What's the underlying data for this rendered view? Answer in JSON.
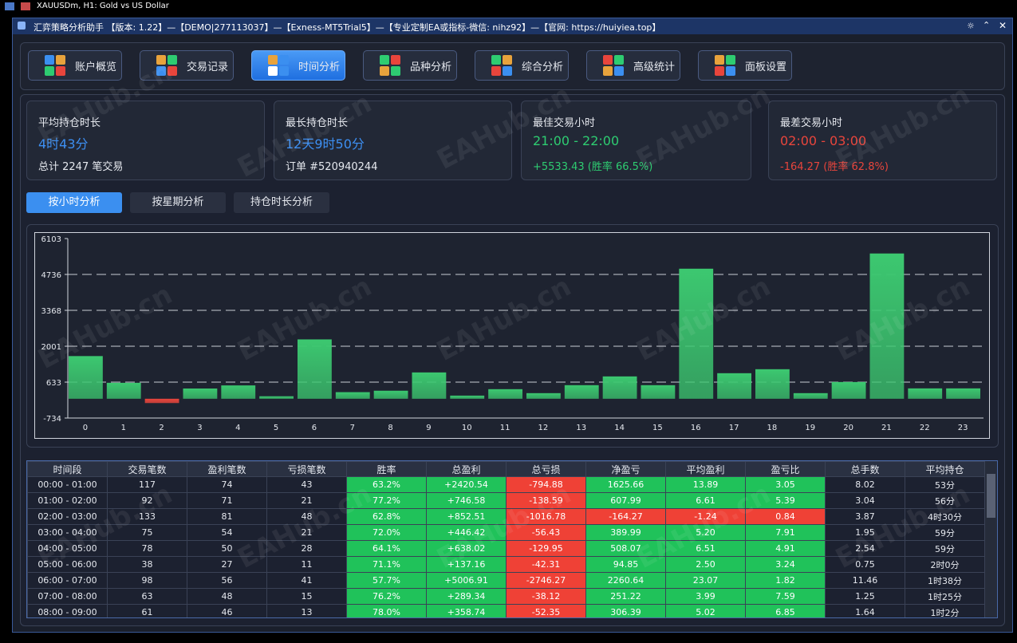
{
  "window_title": "XAUUSDm, H1:  Gold vs US Dollar",
  "app_title": "汇弈策略分析助手 【版本: 1.22】—【DEMO|277113037】—【Exness-MT5Trial5】—【专业定制EA或指标-微信: nihz92】—【官网: https://huiyiea.top】",
  "watermark": "EAHub.cn",
  "tabs": [
    {
      "label": "账户概览",
      "active": false
    },
    {
      "label": "交易记录",
      "active": false
    },
    {
      "label": "时间分析",
      "active": true
    },
    {
      "label": "品种分析",
      "active": false
    },
    {
      "label": "综合分析",
      "active": false
    },
    {
      "label": "高级统计",
      "active": false
    },
    {
      "label": "面板设置",
      "active": false
    }
  ],
  "cards": [
    {
      "label": "平均持仓时长",
      "value": "4时43分",
      "sub": "总计 2247 笔交易",
      "color": "#3d8ff2",
      "sub_color": "#e6e9ef"
    },
    {
      "label": "最长持仓时长",
      "value": "12天9时50分",
      "sub": "订单 #520940244",
      "color": "#3d8ff2",
      "sub_color": "#e6e9ef"
    },
    {
      "label": "最佳交易小时",
      "value": "21:00 - 22:00",
      "sub": "+5533.43 (胜率 66.5%)",
      "color": "#2ecc71",
      "sub_color": "#2ecc71"
    },
    {
      "label": "最差交易小时",
      "value": "02:00 - 03:00",
      "sub": "-164.27 (胜率 62.8%)",
      "color": "#e8453c",
      "sub_color": "#e8453c"
    }
  ],
  "subtabs": [
    {
      "label": "按小时分析",
      "active": true
    },
    {
      "label": "按星期分析",
      "active": false
    },
    {
      "label": "持仓时长分析",
      "active": false
    }
  ],
  "chart_data": {
    "type": "bar",
    "categories": [
      "0",
      "1",
      "2",
      "3",
      "4",
      "5",
      "6",
      "7",
      "8",
      "9",
      "10",
      "11",
      "12",
      "13",
      "14",
      "15",
      "16",
      "17",
      "18",
      "19",
      "20",
      "21",
      "22",
      "23"
    ],
    "values": [
      1625.66,
      607.99,
      -164.27,
      389.99,
      508.07,
      94.85,
      2260.64,
      251.22,
      306.39,
      1003,
      120,
      365,
      213,
      517,
      851,
      517,
      4954,
      973,
      1125,
      213,
      638,
      5533.43,
      395,
      395
    ],
    "ylim": [
      -734,
      6103
    ],
    "yticks": [
      -734,
      633,
      2001,
      3368,
      4736,
      6103
    ],
    "grid": true,
    "colors": {
      "positive": "#3cc870",
      "negative": "#e8453c"
    }
  },
  "table": {
    "headers": [
      "时间段",
      "交易笔数",
      "盈利笔数",
      "亏损笔数",
      "胜率",
      "总盈利",
      "总亏损",
      "净盈亏",
      "平均盈利",
      "盈亏比",
      "总手数",
      "平均持仓"
    ],
    "rows": [
      [
        "00:00 - 01:00",
        "117",
        "74",
        "43",
        "63.2%",
        "+2420.54",
        "-794.88",
        "1625.66",
        "13.89",
        "3.05",
        "8.02",
        "53分"
      ],
      [
        "01:00 - 02:00",
        "92",
        "71",
        "21",
        "77.2%",
        "+746.58",
        "-138.59",
        "607.99",
        "6.61",
        "5.39",
        "3.04",
        "56分"
      ],
      [
        "02:00 - 03:00",
        "133",
        "81",
        "48",
        "62.8%",
        "+852.51",
        "-1016.78",
        "-164.27",
        "-1.24",
        "0.84",
        "3.87",
        "4时30分"
      ],
      [
        "03:00 - 04:00",
        "75",
        "54",
        "21",
        "72.0%",
        "+446.42",
        "-56.43",
        "389.99",
        "5.20",
        "7.91",
        "1.95",
        "59分"
      ],
      [
        "04:00 - 05:00",
        "78",
        "50",
        "28",
        "64.1%",
        "+638.02",
        "-129.95",
        "508.07",
        "6.51",
        "4.91",
        "2.54",
        "59分"
      ],
      [
        "05:00 - 06:00",
        "38",
        "27",
        "11",
        "71.1%",
        "+137.16",
        "-42.31",
        "94.85",
        "2.50",
        "3.24",
        "0.75",
        "2时0分"
      ],
      [
        "06:00 - 07:00",
        "98",
        "56",
        "41",
        "57.7%",
        "+5006.91",
        "-2746.27",
        "2260.64",
        "23.07",
        "1.82",
        "11.46",
        "1时38分"
      ],
      [
        "07:00 - 08:00",
        "63",
        "48",
        "15",
        "76.2%",
        "+289.34",
        "-38.12",
        "251.22",
        "3.99",
        "7.59",
        "1.25",
        "1时25分"
      ],
      [
        "08:00 - 09:00",
        "61",
        "46",
        "13",
        "78.0%",
        "+358.74",
        "-52.35",
        "306.39",
        "5.02",
        "6.85",
        "1.64",
        "1时2分"
      ]
    ]
  }
}
